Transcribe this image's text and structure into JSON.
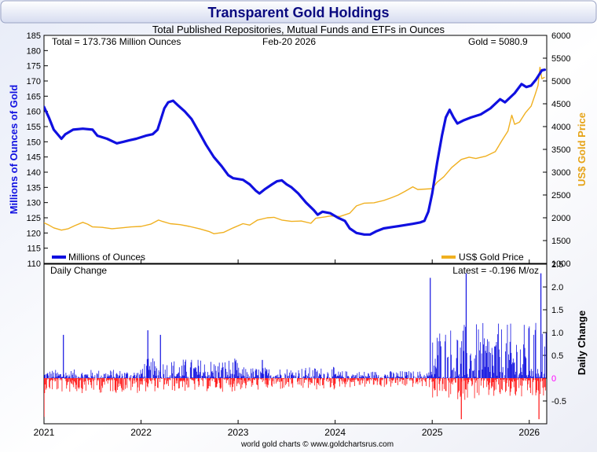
{
  "chart_data": [
    {
      "type": "line",
      "title": "Transparent Gold Holdings",
      "subtitle": "Total Published Repositories, Mutual Funds and ETFs in Ounces",
      "info_total": "Total = 173.736 Million Ounces",
      "info_date": "Feb-20  2026",
      "info_gold": "Gold = 5080.9",
      "ylabel_left": "Millions of Ounces of Gold",
      "ylabel_right": "US$ Gold Price",
      "ylim_left": [
        110,
        185
      ],
      "ylim_right": [
        1000,
        6000
      ],
      "yticks_left": [
        "110",
        "115",
        "120",
        "125",
        "130",
        "135",
        "140",
        "145",
        "150",
        "155",
        "160",
        "165",
        "170",
        "175",
        "180",
        "185"
      ],
      "yticks_right": [
        "1000",
        "1500",
        "2000",
        "2500",
        "3000",
        "3500",
        "4000",
        "4500",
        "5000",
        "5500",
        "6000"
      ],
      "xlim": [
        2021.0,
        2026.18
      ],
      "x_ticks": [
        "2021",
        "2022",
        "2023",
        "2024",
        "2025",
        "2026"
      ],
      "legend": [
        "Millions of Ounces",
        "US$ Gold Price"
      ],
      "series": [
        {
          "name": "Millions of Ounces",
          "axis": "left",
          "color": "#1010e0",
          "points": [
            [
              2021.0,
              161.5
            ],
            [
              2021.05,
              158
            ],
            [
              2021.1,
              154
            ],
            [
              2021.18,
              151
            ],
            [
              2021.22,
              152.5
            ],
            [
              2021.3,
              154
            ],
            [
              2021.4,
              154.3
            ],
            [
              2021.5,
              154
            ],
            [
              2021.55,
              152
            ],
            [
              2021.65,
              151
            ],
            [
              2021.75,
              149.5
            ],
            [
              2021.82,
              150
            ],
            [
              2021.88,
              150.5
            ],
            [
              2021.95,
              151
            ],
            [
              2022.05,
              152
            ],
            [
              2022.12,
              152.5
            ],
            [
              2022.17,
              154
            ],
            [
              2022.2,
              157
            ],
            [
              2022.24,
              161
            ],
            [
              2022.28,
              163
            ],
            [
              2022.33,
              163.5
            ],
            [
              2022.38,
              162
            ],
            [
              2022.45,
              160
            ],
            [
              2022.52,
              157.5
            ],
            [
              2022.6,
              153
            ],
            [
              2022.67,
              149
            ],
            [
              2022.75,
              145
            ],
            [
              2022.83,
              142
            ],
            [
              2022.9,
              139
            ],
            [
              2022.95,
              138
            ],
            [
              2023.05,
              137.5
            ],
            [
              2023.12,
              136
            ],
            [
              2023.18,
              134
            ],
            [
              2023.22,
              133
            ],
            [
              2023.28,
              134.5
            ],
            [
              2023.35,
              136
            ],
            [
              2023.4,
              137
            ],
            [
              2023.45,
              137.3
            ],
            [
              2023.5,
              136
            ],
            [
              2023.55,
              135
            ],
            [
              2023.62,
              133
            ],
            [
              2023.7,
              130
            ],
            [
              2023.78,
              127.5
            ],
            [
              2023.82,
              126
            ],
            [
              2023.87,
              127
            ],
            [
              2023.95,
              126.5
            ],
            [
              2024.03,
              125
            ],
            [
              2024.1,
              124
            ],
            [
              2024.15,
              121.5
            ],
            [
              2024.22,
              120
            ],
            [
              2024.3,
              119.5
            ],
            [
              2024.36,
              119.5
            ],
            [
              2024.42,
              120.5
            ],
            [
              2024.5,
              121.5
            ],
            [
              2024.6,
              122
            ],
            [
              2024.7,
              122.5
            ],
            [
              2024.8,
              123
            ],
            [
              2024.88,
              123.5
            ],
            [
              2024.92,
              124
            ],
            [
              2024.96,
              127
            ],
            [
              2025.0,
              133
            ],
            [
              2025.05,
              143
            ],
            [
              2025.1,
              152
            ],
            [
              2025.14,
              158
            ],
            [
              2025.18,
              160.5
            ],
            [
              2025.22,
              158
            ],
            [
              2025.26,
              156
            ],
            [
              2025.32,
              157
            ],
            [
              2025.4,
              158
            ],
            [
              2025.5,
              159
            ],
            [
              2025.6,
              161
            ],
            [
              2025.7,
              164
            ],
            [
              2025.75,
              163
            ],
            [
              2025.85,
              166
            ],
            [
              2025.92,
              169
            ],
            [
              2025.97,
              168
            ],
            [
              2026.02,
              168.5
            ],
            [
              2026.07,
              170.5
            ],
            [
              2026.1,
              172
            ],
            [
              2026.13,
              173.5
            ],
            [
              2026.16,
              173.7
            ]
          ]
        },
        {
          "name": "US$ Gold Price",
          "axis": "right",
          "color": "#f0b020",
          "points": [
            [
              2021.0,
              1890
            ],
            [
              2021.05,
              1840
            ],
            [
              2021.1,
              1780
            ],
            [
              2021.18,
              1730
            ],
            [
              2021.25,
              1760
            ],
            [
              2021.32,
              1830
            ],
            [
              2021.4,
              1900
            ],
            [
              2021.45,
              1860
            ],
            [
              2021.5,
              1800
            ],
            [
              2021.6,
              1790
            ],
            [
              2021.7,
              1760
            ],
            [
              2021.8,
              1780
            ],
            [
              2021.9,
              1800
            ],
            [
              2022.0,
              1810
            ],
            [
              2022.1,
              1860
            ],
            [
              2022.18,
              1950
            ],
            [
              2022.22,
              1920
            ],
            [
              2022.3,
              1870
            ],
            [
              2022.4,
              1850
            ],
            [
              2022.5,
              1810
            ],
            [
              2022.6,
              1760
            ],
            [
              2022.7,
              1700
            ],
            [
              2022.75,
              1650
            ],
            [
              2022.85,
              1680
            ],
            [
              2022.95,
              1780
            ],
            [
              2023.05,
              1870
            ],
            [
              2023.12,
              1840
            ],
            [
              2023.2,
              1950
            ],
            [
              2023.3,
              2000
            ],
            [
              2023.37,
              2010
            ],
            [
              2023.45,
              1950
            ],
            [
              2023.55,
              1920
            ],
            [
              2023.65,
              1930
            ],
            [
              2023.75,
              1880
            ],
            [
              2023.8,
              1990
            ],
            [
              2023.9,
              2020
            ],
            [
              2023.95,
              2040
            ],
            [
              2024.05,
              2030
            ],
            [
              2024.15,
              2100
            ],
            [
              2024.22,
              2260
            ],
            [
              2024.3,
              2320
            ],
            [
              2024.4,
              2330
            ],
            [
              2024.5,
              2380
            ],
            [
              2024.58,
              2440
            ],
            [
              2024.65,
              2500
            ],
            [
              2024.72,
              2580
            ],
            [
              2024.8,
              2680
            ],
            [
              2024.85,
              2620
            ],
            [
              2024.93,
              2630
            ],
            [
              2025.0,
              2640
            ],
            [
              2025.05,
              2780
            ],
            [
              2025.12,
              2900
            ],
            [
              2025.2,
              3100
            ],
            [
              2025.3,
              3280
            ],
            [
              2025.38,
              3330
            ],
            [
              2025.45,
              3300
            ],
            [
              2025.55,
              3350
            ],
            [
              2025.65,
              3450
            ],
            [
              2025.72,
              3700
            ],
            [
              2025.78,
              3900
            ],
            [
              2025.82,
              4250
            ],
            [
              2025.85,
              4050
            ],
            [
              2025.9,
              4100
            ],
            [
              2025.96,
              4300
            ],
            [
              2026.02,
              4450
            ],
            [
              2026.06,
              4700
            ],
            [
              2026.09,
              4900
            ],
            [
              2026.11,
              5300
            ],
            [
              2026.13,
              5050
            ],
            [
              2026.16,
              5080.9
            ]
          ]
        }
      ]
    },
    {
      "type": "bar",
      "title": "Daily Change",
      "info_latest": "Latest = -0.196 M/oz",
      "ylabel": "Daily Change",
      "ylim": [
        -1,
        2.5
      ],
      "yticks": [
        "-0.5",
        "0",
        "0.5",
        "1.0",
        "1.5",
        "2.0",
        "2.5"
      ],
      "xlim": [
        2021.0,
        2026.18
      ],
      "x_ticks": [
        "2021",
        "2022",
        "2023",
        "2024",
        "2025",
        "2026"
      ],
      "positive_color": "#1010e0",
      "negative_color": "#ff1010",
      "zero_label_color": "#ff00ff",
      "band_max_abs_by_year": [
        {
          "year": "2021",
          "up": 0.35,
          "down": -0.55
        },
        {
          "year": "2022",
          "up": 0.8,
          "down": -0.5
        },
        {
          "year": "2023",
          "up": 0.45,
          "down": -0.45
        },
        {
          "year": "2024",
          "up": 0.3,
          "down": -0.35
        },
        {
          "year": "2025",
          "up": 2.2,
          "down": -0.8
        },
        {
          "year": "2026",
          "up": 2.3,
          "down": -0.85
        }
      ],
      "notable_values": [
        {
          "x": 2021.2,
          "value": 0.95
        },
        {
          "x": 2021.0,
          "value": -0.85
        },
        {
          "x": 2022.07,
          "value": 1.05
        },
        {
          "x": 2022.2,
          "value": 0.95
        },
        {
          "x": 2023.25,
          "value": 0.4
        },
        {
          "x": 2024.98,
          "value": 2.2
        },
        {
          "x": 2025.35,
          "value": 2.3
        },
        {
          "x": 2025.3,
          "value": -0.9
        },
        {
          "x": 2026.12,
          "value": 2.3
        },
        {
          "x": 2026.1,
          "value": -0.9
        },
        {
          "x": 2026.16,
          "value": -0.196
        }
      ]
    }
  ],
  "footer": "world gold charts © www.goldchartsrus.com"
}
